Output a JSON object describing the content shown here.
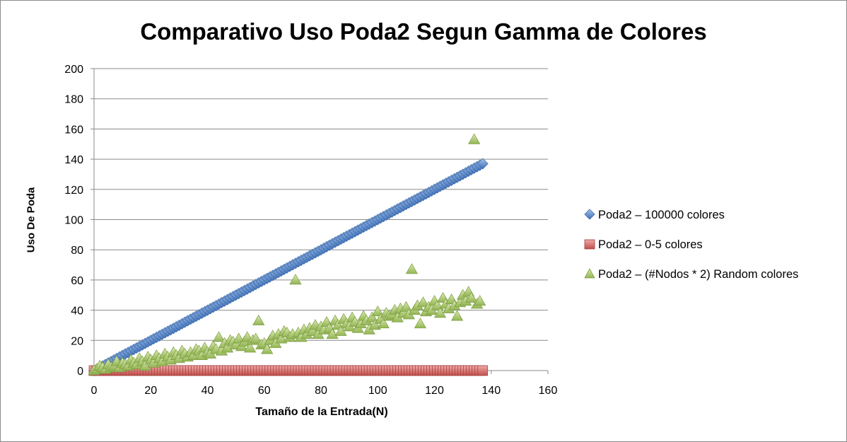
{
  "chart_data": {
    "type": "scatter",
    "title": "Comparativo Uso Poda2 Segun Gamma de Colores",
    "xlabel": "Tamaño de la Entrada(N)",
    "ylabel": "Uso De Poda",
    "xlim": [
      0,
      160
    ],
    "ylim": [
      0,
      200
    ],
    "xticks": [
      "0",
      "20",
      "40",
      "60",
      "80",
      "100",
      "120",
      "140",
      "160"
    ],
    "yticks": [
      "0",
      "20",
      "40",
      "60",
      "80",
      "100",
      "120",
      "140",
      "160",
      "180",
      "200"
    ],
    "grid": "horizontal",
    "legend_position": "right",
    "series": [
      {
        "name": "Poda2 – 100000 colores",
        "marker": "diamond",
        "color": "#4a7ebb",
        "x": [
          0,
          1,
          2,
          3,
          4,
          5,
          6,
          7,
          8,
          9,
          10,
          11,
          12,
          13,
          14,
          15,
          16,
          17,
          18,
          19,
          20,
          21,
          22,
          23,
          24,
          25,
          26,
          27,
          28,
          29,
          30,
          31,
          32,
          33,
          34,
          35,
          36,
          37,
          38,
          39,
          40,
          41,
          42,
          43,
          44,
          45,
          46,
          47,
          48,
          49,
          50,
          51,
          52,
          53,
          54,
          55,
          56,
          57,
          58,
          59,
          60,
          61,
          62,
          63,
          64,
          65,
          66,
          67,
          68,
          69,
          70,
          71,
          72,
          73,
          74,
          75,
          76,
          77,
          78,
          79,
          80,
          81,
          82,
          83,
          84,
          85,
          86,
          87,
          88,
          89,
          90,
          91,
          92,
          93,
          94,
          95,
          96,
          97,
          98,
          99,
          100,
          101,
          102,
          103,
          104,
          105,
          106,
          107,
          108,
          109,
          110,
          111,
          112,
          113,
          114,
          115,
          116,
          117,
          118,
          119,
          120,
          121,
          122,
          123,
          124,
          125,
          126,
          127,
          128,
          129,
          130,
          131,
          132,
          133,
          134,
          135,
          136,
          137
        ],
        "y": [
          0,
          1,
          2,
          3,
          4,
          5,
          6,
          7,
          8,
          9,
          10,
          11,
          12,
          13,
          14,
          15,
          16,
          17,
          18,
          19,
          20,
          21,
          22,
          23,
          24,
          25,
          26,
          27,
          28,
          29,
          30,
          31,
          32,
          33,
          34,
          35,
          36,
          37,
          38,
          39,
          40,
          41,
          42,
          43,
          44,
          45,
          46,
          47,
          48,
          49,
          50,
          51,
          52,
          53,
          54,
          55,
          56,
          57,
          58,
          59,
          60,
          61,
          62,
          63,
          64,
          65,
          66,
          67,
          68,
          69,
          70,
          71,
          72,
          73,
          74,
          75,
          76,
          77,
          78,
          79,
          80,
          81,
          82,
          83,
          84,
          85,
          86,
          87,
          88,
          89,
          90,
          91,
          92,
          93,
          94,
          95,
          96,
          97,
          98,
          99,
          100,
          101,
          102,
          103,
          104,
          105,
          106,
          107,
          108,
          109,
          110,
          111,
          112,
          113,
          114,
          115,
          116,
          117,
          118,
          119,
          120,
          121,
          122,
          123,
          124,
          125,
          126,
          127,
          128,
          129,
          130,
          131,
          132,
          133,
          134,
          135,
          136,
          137
        ]
      },
      {
        "name": "Poda2 – 0-5 colores",
        "marker": "square",
        "color": "#be4b48",
        "x": [
          0,
          1,
          2,
          3,
          4,
          5,
          6,
          7,
          8,
          9,
          10,
          11,
          12,
          13,
          14,
          15,
          16,
          17,
          18,
          19,
          20,
          21,
          22,
          23,
          24,
          25,
          26,
          27,
          28,
          29,
          30,
          31,
          32,
          33,
          34,
          35,
          36,
          37,
          38,
          39,
          40,
          41,
          42,
          43,
          44,
          45,
          46,
          47,
          48,
          49,
          50,
          51,
          52,
          53,
          54,
          55,
          56,
          57,
          58,
          59,
          60,
          61,
          62,
          63,
          64,
          65,
          66,
          67,
          68,
          69,
          70,
          71,
          72,
          73,
          74,
          75,
          76,
          77,
          78,
          79,
          80,
          81,
          82,
          83,
          84,
          85,
          86,
          87,
          88,
          89,
          90,
          91,
          92,
          93,
          94,
          95,
          96,
          97,
          98,
          99,
          100,
          101,
          102,
          103,
          104,
          105,
          106,
          107,
          108,
          109,
          110,
          111,
          112,
          113,
          114,
          115,
          116,
          117,
          118,
          119,
          120,
          121,
          122,
          123,
          124,
          125,
          126,
          127,
          128,
          129,
          130,
          131,
          132,
          133,
          134,
          135,
          136,
          137
        ],
        "y": [
          0,
          0,
          0,
          0,
          0,
          0,
          0,
          0,
          0,
          0,
          0,
          0,
          0,
          0,
          0,
          0,
          0,
          0,
          0,
          0,
          0,
          0,
          0,
          0,
          0,
          0,
          0,
          0,
          0,
          0,
          0,
          0,
          0,
          0,
          0,
          0,
          0,
          0,
          0,
          0,
          0,
          0,
          0,
          0,
          0,
          0,
          0,
          0,
          0,
          0,
          0,
          0,
          0,
          0,
          0,
          0,
          0,
          0,
          0,
          0,
          0,
          0,
          0,
          0,
          0,
          0,
          0,
          0,
          0,
          0,
          0,
          0,
          0,
          0,
          0,
          0,
          0,
          0,
          0,
          0,
          0,
          0,
          0,
          0,
          0,
          0,
          0,
          0,
          0,
          0,
          0,
          0,
          0,
          0,
          0,
          0,
          0,
          0,
          0,
          0,
          0,
          0,
          0,
          0,
          0,
          0,
          0,
          0,
          0,
          0,
          0,
          0,
          0,
          0,
          0,
          0,
          0,
          0,
          0,
          0,
          0,
          0,
          0,
          0,
          0,
          0,
          0,
          0,
          0,
          0,
          0,
          0,
          0,
          0,
          0,
          0,
          0,
          0
        ]
      },
      {
        "name": "Poda2 – (#Nodos * 2) Random colores",
        "marker": "triangle",
        "color": "#98b954",
        "x": [
          0,
          1,
          2,
          3,
          4,
          5,
          6,
          7,
          8,
          9,
          10,
          11,
          12,
          13,
          14,
          15,
          16,
          17,
          18,
          19,
          20,
          21,
          22,
          23,
          24,
          25,
          26,
          27,
          28,
          29,
          30,
          31,
          32,
          33,
          34,
          35,
          36,
          37,
          38,
          39,
          40,
          41,
          42,
          43,
          44,
          45,
          46,
          47,
          48,
          49,
          50,
          51,
          52,
          53,
          54,
          55,
          56,
          57,
          58,
          59,
          60,
          61,
          62,
          63,
          64,
          65,
          66,
          67,
          68,
          69,
          70,
          71,
          72,
          73,
          74,
          75,
          76,
          77,
          78,
          79,
          80,
          81,
          82,
          83,
          84,
          85,
          86,
          87,
          88,
          89,
          90,
          91,
          92,
          93,
          94,
          95,
          96,
          97,
          98,
          99,
          100,
          101,
          102,
          103,
          104,
          105,
          106,
          107,
          108,
          109,
          110,
          111,
          112,
          113,
          114,
          115,
          116,
          117,
          118,
          119,
          120,
          121,
          122,
          123,
          124,
          125,
          126,
          127,
          128,
          129,
          130,
          131,
          132,
          133,
          134,
          135,
          136
        ],
        "y": [
          0,
          1,
          3,
          2,
          1,
          4,
          2,
          3,
          6,
          2,
          5,
          4,
          3,
          7,
          5,
          4,
          8,
          6,
          3,
          9,
          7,
          5,
          10,
          8,
          6,
          11,
          9,
          7,
          12,
          10,
          8,
          13,
          11,
          9,
          12,
          10,
          14,
          13,
          10,
          15,
          12,
          11,
          16,
          14,
          22,
          13,
          18,
          15,
          20,
          19,
          17,
          21,
          16,
          19,
          22,
          15,
          20,
          21,
          33,
          17,
          18,
          14,
          20,
          23,
          18,
          24,
          21,
          26,
          25,
          22,
          24,
          60,
          25,
          22,
          27,
          24,
          28,
          26,
          30,
          24,
          29,
          27,
          32,
          28,
          24,
          33,
          30,
          26,
          34,
          31,
          29,
          35,
          32,
          28,
          31,
          36,
          33,
          27,
          35,
          30,
          39,
          34,
          31,
          38,
          36,
          37,
          40,
          35,
          41,
          38,
          42,
          37,
          67,
          40,
          43,
          31,
          45,
          39,
          42,
          40,
          46,
          43,
          38,
          48,
          44,
          41,
          47,
          43,
          36,
          45,
          50,
          46,
          52,
          48,
          153,
          44,
          46
        ]
      }
    ]
  }
}
